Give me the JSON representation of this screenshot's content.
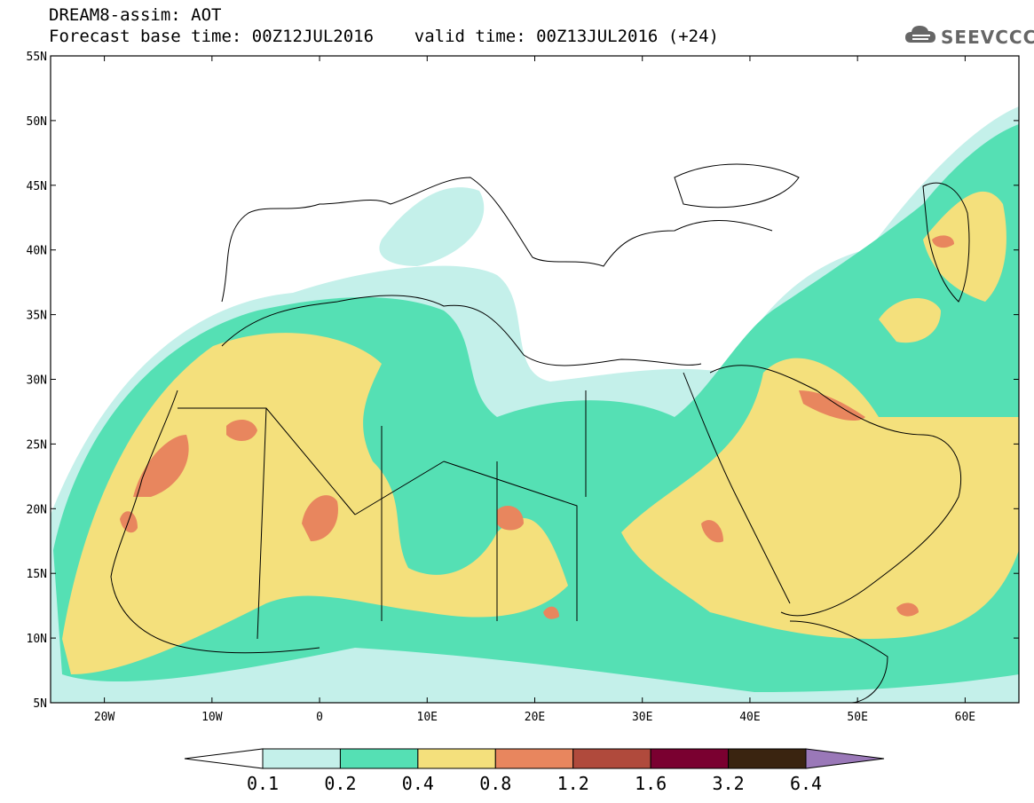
{
  "header": {
    "title_line1": "DREAM8-assim: AOT",
    "title_line2": "Forecast base time: 00Z12JUL2016    valid time: 00Z13JUL2016 (+24)",
    "logo_text": "SEEVCCC"
  },
  "map": {
    "lat_labels": [
      "55N",
      "50N",
      "45N",
      "40N",
      "35N",
      "30N",
      "25N",
      "20N",
      "15N",
      "10N",
      "5N"
    ],
    "lon_labels": [
      "20W",
      "10W",
      "0",
      "10E",
      "20E",
      "30E",
      "40E",
      "50E",
      "60E"
    ],
    "extent": {
      "lon_min": -25,
      "lon_max": 65,
      "lat_min": 5,
      "lat_max": 55
    }
  },
  "colorbar": {
    "labels": [
      "0.1",
      "0.2",
      "0.4",
      "0.8",
      "1.2",
      "1.6",
      "3.2",
      "6.4"
    ],
    "colors": [
      "#ffffff",
      "#c4f0ea",
      "#55e0b4",
      "#f4e07c",
      "#e8865e",
      "#b04a3c",
      "#7a0030",
      "#3a2410",
      "#9a78b8"
    ],
    "color_ranges": [
      "<0.1",
      "0.1-0.2",
      "0.2-0.4",
      "0.4-0.8",
      "0.8-1.2",
      "1.2-1.6",
      "1.6-3.2",
      "3.2-6.4",
      ">6.4"
    ]
  }
}
